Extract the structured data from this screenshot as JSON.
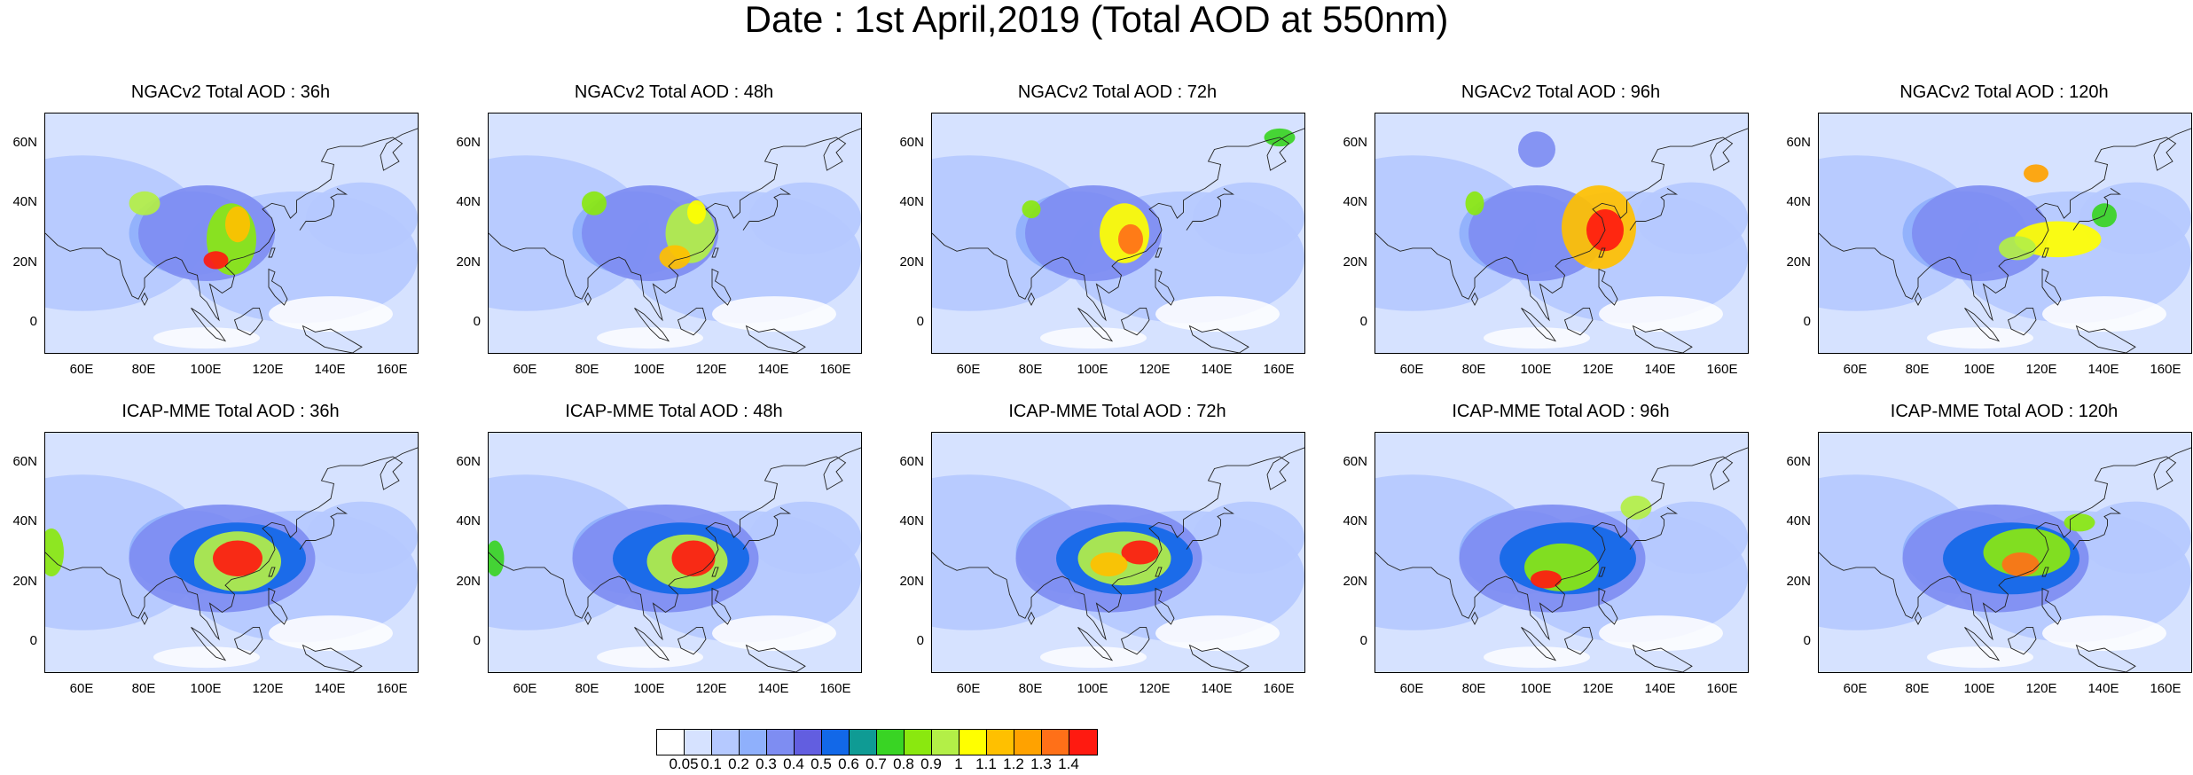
{
  "title": "Date : 1st April,2019 (Total AOD at 550nm)",
  "axes": {
    "y_ticks": [
      "60N",
      "40N",
      "20N",
      "0"
    ],
    "y_values": [
      60,
      40,
      20,
      0
    ],
    "x_ticks": [
      "60E",
      "80E",
      "100E",
      "120E",
      "140E",
      "160E"
    ],
    "x_values": [
      60,
      80,
      100,
      120,
      140,
      160
    ],
    "lon_range": [
      48,
      168
    ],
    "lat_range": [
      -10,
      70
    ]
  },
  "panels": [
    {
      "title": "NGACv2 Total AOD : 36h"
    },
    {
      "title": "NGACv2 Total AOD : 48h"
    },
    {
      "title": "NGACv2 Total AOD : 72h"
    },
    {
      "title": "NGACv2 Total AOD : 96h"
    },
    {
      "title": "NGACv2 Total AOD : 120h"
    },
    {
      "title": "ICAP-MME Total AOD : 36h"
    },
    {
      "title": "ICAP-MME Total AOD : 48h"
    },
    {
      "title": "ICAP-MME Total AOD : 72h"
    },
    {
      "title": "ICAP-MME Total AOD : 96h"
    },
    {
      "title": "ICAP-MME Total AOD : 120h"
    }
  ],
  "colorbar": {
    "labels": [
      "0.05",
      "0.1",
      "0.2",
      "0.3",
      "0.4",
      "0.5",
      "0.6",
      "0.7",
      "0.8",
      "0.9",
      "1",
      "1.1",
      "1.2",
      "1.3",
      "1.4"
    ],
    "colors": [
      "#ffffff",
      "#d6e2ff",
      "#b5c9ff",
      "#8fb0fc",
      "#7e8df2",
      "#625ee0",
      "#1268e8",
      "#0f9b94",
      "#39d424",
      "#8ae80f",
      "#b3ef47",
      "#ffff00",
      "#ffc000",
      "#ffa200",
      "#ff7018",
      "#ff1a10"
    ]
  }
}
